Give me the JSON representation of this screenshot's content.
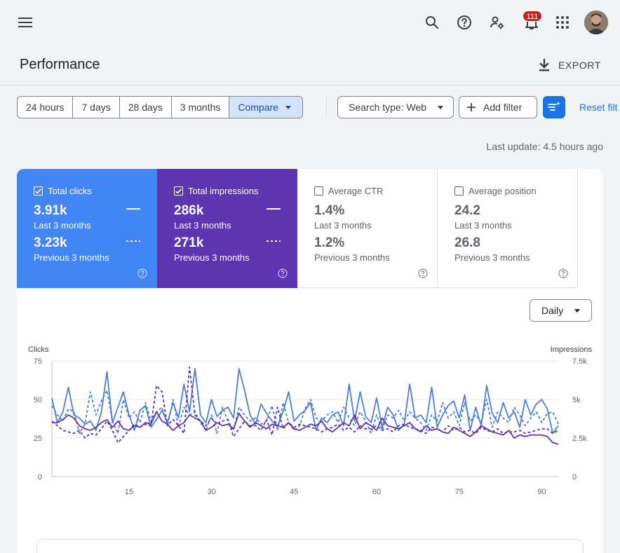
{
  "topbar": {
    "notifications_count": "111",
    "icons": [
      "menu-icon",
      "search-icon",
      "help-icon",
      "manage-users-icon",
      "notifications-icon",
      "apps-grid-icon"
    ]
  },
  "header": {
    "title": "Performance",
    "export_label": "EXPORT"
  },
  "filters": {
    "ranges": [
      "24 hours",
      "7 days",
      "28 days",
      "3 months"
    ],
    "compare_label": "Compare",
    "search_type_label": "Search type: Web",
    "add_filter_label": "Add filter",
    "reset_label": "Reset filt"
  },
  "last_update": "Last update: 4.5 hours ago",
  "metrics": [
    {
      "label": "Total clicks",
      "checked": true,
      "value": "3.91k",
      "period": "Last 3 months",
      "prev_value": "3.23k",
      "prev_period": "Previous 3 months",
      "color": "#4285f4"
    },
    {
      "label": "Total impressions",
      "checked": true,
      "value": "286k",
      "period": "Last 3 months",
      "prev_value": "271k",
      "prev_period": "Previous 3 months",
      "color": "#5e35b1"
    },
    {
      "label": "Average CTR",
      "checked": false,
      "value": "1.4%",
      "period": "Last 3 months",
      "prev_value": "1.2%",
      "prev_period": "Previous 3 months"
    },
    {
      "label": "Average position",
      "checked": false,
      "value": "24.2",
      "period": "Last 3 months",
      "prev_value": "26.8",
      "prev_period": "Previous 3 months"
    }
  ],
  "granularity": "Daily",
  "chart_data": {
    "type": "line",
    "ylabel_left": "Clicks",
    "ylabel_right": "Impressions",
    "y_left_ticks": [
      "0",
      "25",
      "50",
      "75"
    ],
    "y_right_ticks": [
      "0",
      "2.5k",
      "5k",
      "7.5k"
    ],
    "x_ticks": [
      15,
      30,
      45,
      60,
      75,
      90
    ],
    "ylim_left": [
      0,
      75
    ],
    "ylim_right": [
      0,
      7500
    ],
    "xlim": [
      1,
      93
    ],
    "series": [
      {
        "axis": "left",
        "style": "solid",
        "color": "#4a7fd6",
        "values": [
          51,
          35,
          42,
          58,
          40,
          38,
          34,
          36,
          30,
          42,
          68,
          35,
          45,
          55,
          40,
          30,
          43,
          46,
          32,
          37,
          43,
          35,
          48,
          38,
          60,
          42,
          70,
          40,
          35,
          50,
          39,
          43,
          45,
          38,
          70,
          56,
          40,
          34,
          47,
          41,
          36,
          33,
          42,
          55,
          36,
          40,
          43,
          48,
          30,
          38,
          35,
          40,
          42,
          33,
          60,
          36,
          55,
          39,
          35,
          51,
          32,
          45,
          40,
          30,
          34,
          60,
          38,
          40,
          35,
          58,
          32,
          40,
          46,
          49,
          38,
          53,
          30,
          45,
          33,
          59,
          41,
          35,
          48,
          38,
          42,
          32,
          50,
          40,
          47,
          50,
          44,
          28,
          33
        ]
      },
      {
        "axis": "left",
        "style": "dashed",
        "color": "#4a7fd6",
        "values": [
          46,
          40,
          36,
          44,
          42,
          28,
          34,
          55,
          40,
          49,
          56,
          36,
          28,
          50,
          38,
          42,
          35,
          48,
          36,
          42,
          45,
          33,
          50,
          32,
          45,
          40,
          42,
          35,
          30,
          40,
          28,
          45,
          36,
          30,
          45,
          40,
          36,
          38,
          34,
          36,
          46,
          30,
          48,
          35,
          30,
          33,
          44,
          50,
          38,
          36,
          40,
          42,
          35,
          45,
          38,
          33,
          42,
          36,
          28,
          40,
          30,
          40,
          38,
          43,
          36,
          42,
          38,
          35,
          30,
          40,
          36,
          48,
          38,
          42,
          33,
          48,
          36,
          40,
          35,
          50,
          32,
          42,
          38,
          35,
          45,
          40,
          33,
          38,
          42,
          35,
          41,
          42,
          34
        ]
      },
      {
        "axis": "right",
        "style": "solid",
        "color": "#5e35b1",
        "values": [
          3500,
          3500,
          3700,
          4000,
          3800,
          3300,
          3100,
          3000,
          3200,
          3500,
          3700,
          3200,
          3600,
          3100,
          3000,
          3300,
          3200,
          3500,
          3400,
          4200,
          3600,
          3400,
          3000,
          3300,
          3500,
          4000,
          3800,
          3600,
          3000,
          3200,
          3500,
          3300,
          3400,
          3100,
          4100,
          3600,
          3200,
          3500,
          3300,
          3100,
          3400,
          3300,
          3200,
          3500,
          3100,
          3000,
          3200,
          3400,
          3300,
          3600,
          3100,
          2900,
          3200,
          3500,
          3300,
          4000,
          3100,
          3500,
          3300,
          3000,
          3800,
          3300,
          3200,
          3100,
          3300,
          3500,
          3100,
          2900,
          3300,
          3000,
          3100,
          2900,
          2800,
          3200,
          3000,
          2800,
          2600,
          2900,
          3300,
          3100,
          2900,
          2800,
          2700,
          3000,
          2500,
          2700,
          2600,
          2700,
          2700,
          2700,
          2600,
          2200,
          2100
        ]
      },
      {
        "axis": "right",
        "style": "dashed",
        "color": "#5e35b1",
        "values": [
          3600,
          3300,
          3000,
          2900,
          2800,
          3000,
          2500,
          2800,
          2700,
          3100,
          3600,
          3000,
          2200,
          2600,
          3000,
          3400,
          3200,
          3400,
          3300,
          5900,
          5500,
          3300,
          3700,
          3300,
          2800,
          7100,
          4000,
          3600,
          3300,
          3800,
          3400,
          3600,
          3700,
          2600,
          3100,
          3600,
          3300,
          3300,
          3000,
          3700,
          2700,
          4500,
          3100,
          3500,
          3200,
          3400,
          3300,
          3200,
          3100,
          2900,
          3100,
          3200,
          3400,
          3000,
          3200,
          2900,
          3300,
          3100,
          3100,
          3300,
          3000,
          3100,
          2900,
          3300,
          3400,
          3200,
          3100,
          3000,
          2800,
          3200,
          3100,
          2900,
          3300,
          3000,
          3200,
          2900,
          3000,
          2800,
          3200,
          3000,
          2900,
          3100,
          2800,
          2900,
          2900,
          3000,
          2800,
          2900,
          3000,
          3100,
          3100,
          2800,
          3000
        ]
      }
    ]
  }
}
